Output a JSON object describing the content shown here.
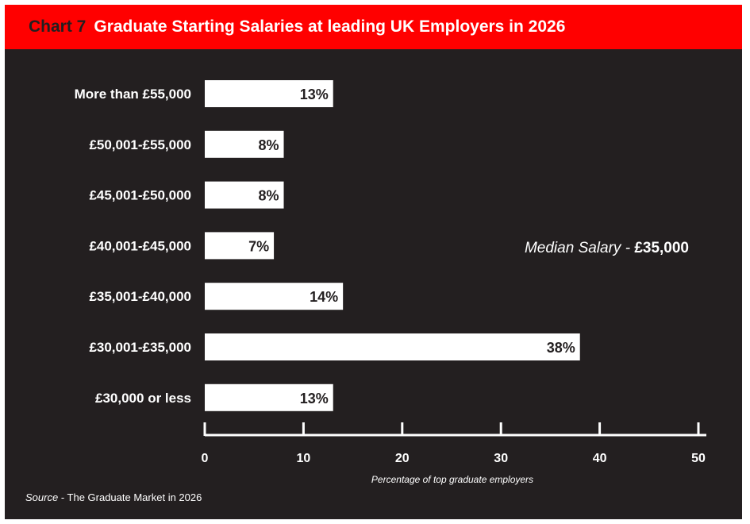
{
  "header": {
    "chart_number": "Chart 7",
    "title": "Graduate Starting Salaries at leading UK Employers in 2026"
  },
  "colors": {
    "header_bg": "#ff0000",
    "panel_bg": "#231f20",
    "bar": "#ffffff",
    "text": "#ffffff",
    "bar_text": "#231f20"
  },
  "chart_data": {
    "type": "bar",
    "orientation": "horizontal",
    "title": "Graduate Starting Salaries at leading UK Employers in 2026",
    "categories": [
      "More than £55,000",
      "£50,001-£55,000",
      "£45,001-£50,000",
      "£40,001-£45,000",
      "£35,001-£40,000",
      "£30,001-£35,000",
      "£30,000 or less"
    ],
    "values": [
      13,
      8,
      8,
      7,
      14,
      38,
      13
    ],
    "value_labels": [
      "13%",
      "8%",
      "8%",
      "7%",
      "14%",
      "38%",
      "13%"
    ],
    "xlabel": "Percentage of top graduate employers",
    "ylabel": "",
    "xlim": [
      0,
      50
    ],
    "xticks": [
      0,
      10,
      20,
      30,
      40,
      50
    ],
    "grid": false,
    "legend": "none",
    "annotation": {
      "prefix": "Median Salary - ",
      "value": "£35,000"
    }
  },
  "source": {
    "prefix": "Source",
    "text": " - The Graduate Market in 2026"
  }
}
